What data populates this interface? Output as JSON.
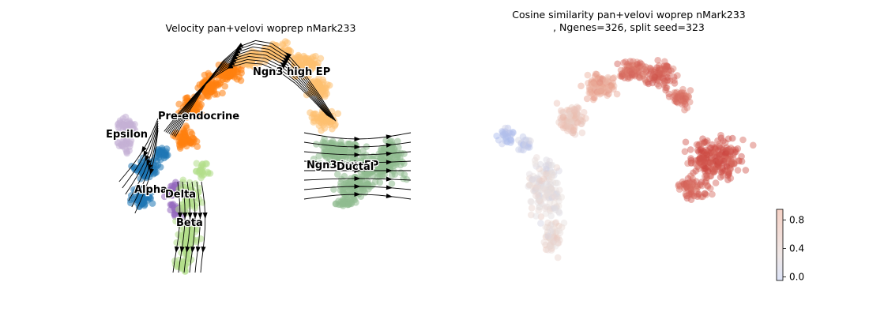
{
  "chart_data": [
    {
      "type": "scatter",
      "title": "Velocity pan+velovi woprep nMark233",
      "xlabel": "",
      "ylabel": "",
      "grid": false,
      "axes_visible": false,
      "overlay": "velocity stream arrows",
      "clusters": [
        {
          "name": "Epsilon",
          "color": "#c5b0d5"
        },
        {
          "name": "Pre-endocrine",
          "color": "#ff7f0e"
        },
        {
          "name": "Ngn3 high EP",
          "color": "#ffbb78"
        },
        {
          "name": "Ngn3 low EP",
          "color": "#ffbb78"
        },
        {
          "name": "Ductal",
          "color": "#8fbc8f"
        },
        {
          "name": "Alpha",
          "color": "#1f77b4"
        },
        {
          "name": "Delta",
          "color": "#9467bd"
        },
        {
          "name": "Beta",
          "color": "#aec7e8"
        }
      ]
    },
    {
      "type": "scatter",
      "title_line1": "Cosine similarity pan+velovi woprep nMark233",
      "title_line2": ", Ngenes=326, split seed=323",
      "xlabel": "",
      "ylabel": "",
      "grid": false,
      "axes_visible": false,
      "colormap": "coolwarm",
      "colorbar": {
        "ticks": [
          "0.0",
          "0.4",
          "0.8"
        ],
        "range": [
          -0.05,
          0.95
        ],
        "placement": "lower-right"
      }
    }
  ]
}
